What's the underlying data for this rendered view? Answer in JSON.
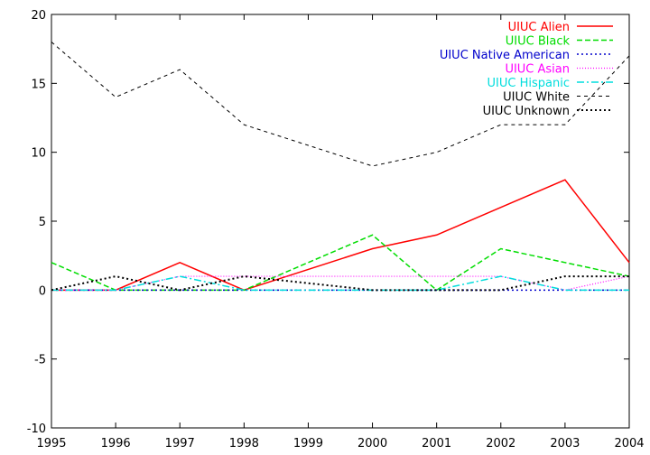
{
  "chart_data": {
    "type": "line",
    "title": "",
    "xlabel": "",
    "ylabel": "",
    "x": [
      1995,
      1996,
      1997,
      1998,
      1999,
      2000,
      2001,
      2002,
      2003,
      2004
    ],
    "xlim": [
      1995,
      2004
    ],
    "ylim": [
      -10,
      20
    ],
    "xticks": [
      "1995",
      "1996",
      "1997",
      "1998",
      "1999",
      "2000",
      "2001",
      "2002",
      "2003",
      "2004"
    ],
    "yticks": [
      "-10",
      "-5",
      "0",
      "5",
      "10",
      "15",
      "20"
    ],
    "grid": false,
    "legend_position": "top-right",
    "series": [
      {
        "name": "UIUC Alien",
        "color": "#ff0000",
        "dash": "solid",
        "values": [
          0,
          0,
          2,
          0,
          1.5,
          3,
          4,
          6,
          8,
          2
        ]
      },
      {
        "name": "UIUC Black",
        "color": "#00dd00",
        "dash": "dashed",
        "values": [
          2,
          0,
          0,
          0,
          2,
          4,
          0,
          3,
          2,
          1
        ]
      },
      {
        "name": "UIUC Native American",
        "color": "#0000cc",
        "dash": "dotted",
        "values": [
          0,
          0,
          0,
          0,
          0,
          0,
          0,
          0,
          0,
          0
        ]
      },
      {
        "name": "UIUC Asian",
        "color": "#ff00ff",
        "dash": "fine-dotted",
        "values": [
          0,
          0,
          1,
          1,
          1,
          1,
          1,
          1,
          0,
          1
        ]
      },
      {
        "name": "UIUC Hispanic",
        "color": "#00dddd",
        "dash": "dash-dot",
        "values": [
          0,
          0,
          1,
          0,
          0,
          0,
          0,
          1,
          0,
          0
        ]
      },
      {
        "name": "UIUC White",
        "color": "#000000",
        "dash": "small-dashed",
        "values": [
          18,
          14,
          16,
          12,
          10.5,
          9,
          10,
          12,
          12,
          17
        ]
      },
      {
        "name": "UIUC Unknown",
        "color": "#000000",
        "dash": "dotted-bold",
        "values": [
          0,
          1,
          0,
          1,
          0.5,
          0,
          0,
          0,
          1,
          1
        ]
      }
    ]
  }
}
